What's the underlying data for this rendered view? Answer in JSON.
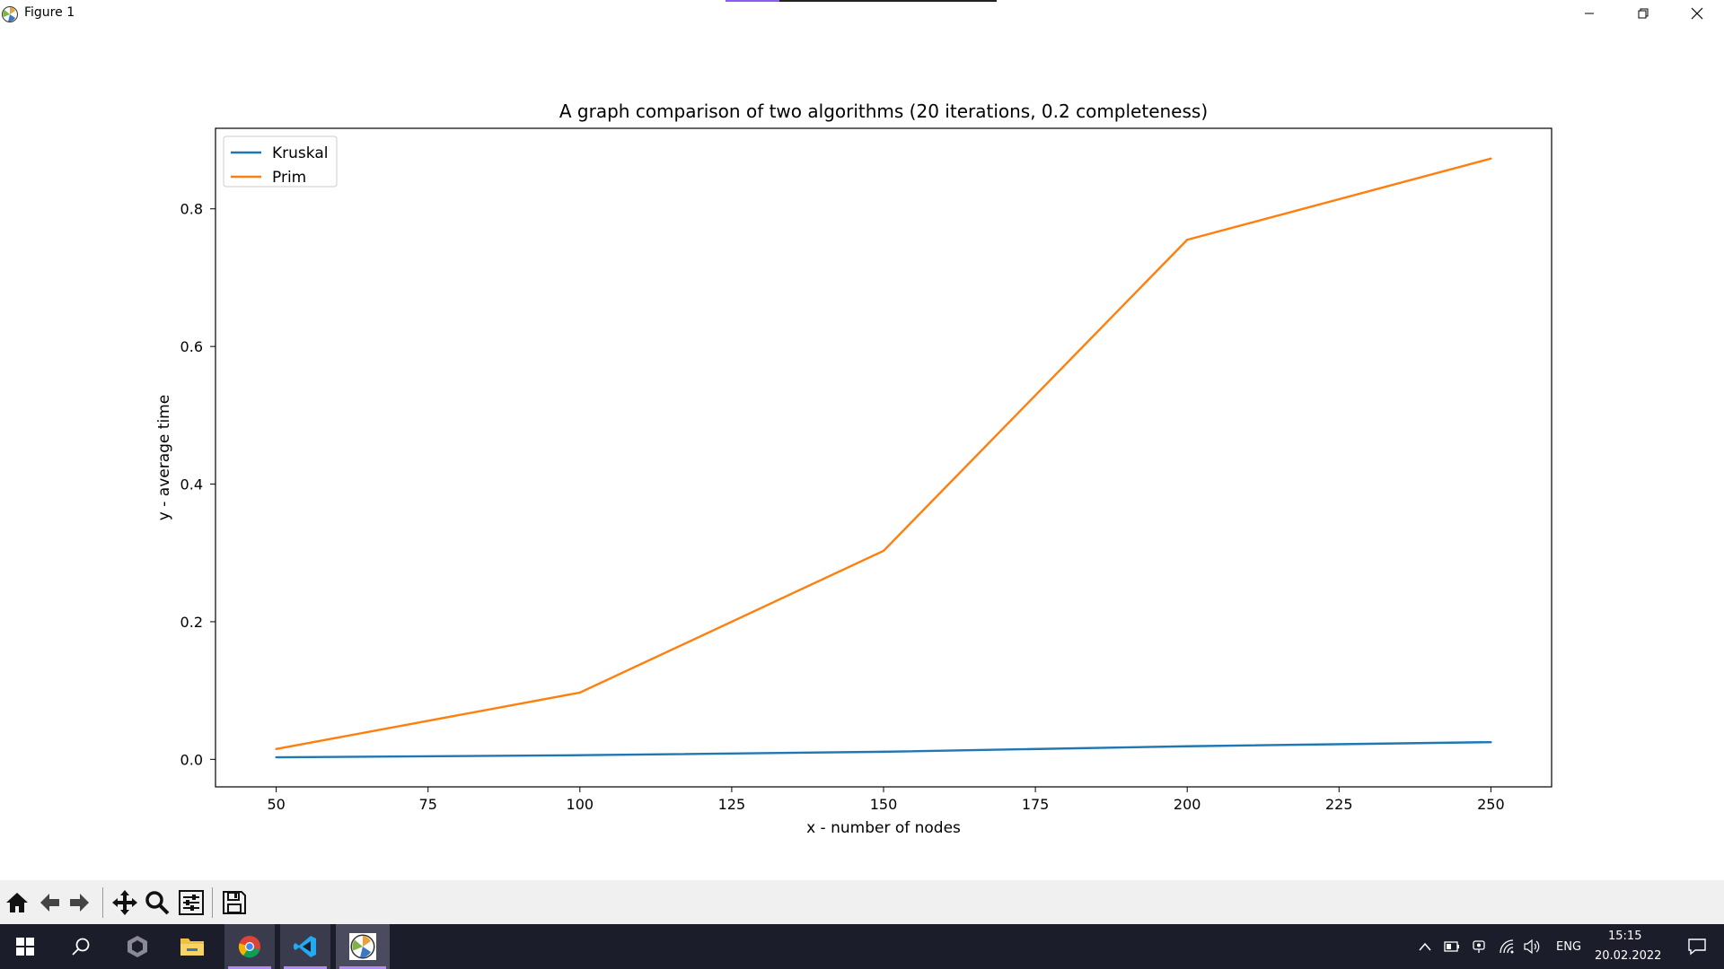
{
  "window": {
    "title": "Figure 1",
    "app_icon": "matplotlib-icon",
    "controls": [
      "minimize-icon",
      "restore-icon",
      "close-icon"
    ]
  },
  "chart_data": {
    "type": "line",
    "title": "A graph comparison of two algorithms (20 iterations, 0.2 completeness)",
    "xlabel": "x - number of nodes",
    "ylabel": "y - average time",
    "x": [
      50,
      100,
      150,
      200,
      250
    ],
    "series": [
      {
        "name": "Kruskal",
        "color": "#1f77b4",
        "values": [
          0.003,
          0.006,
          0.011,
          0.019,
          0.025
        ]
      },
      {
        "name": "Prim",
        "color": "#ff7f0e",
        "values": [
          0.015,
          0.097,
          0.303,
          0.755,
          0.873
        ]
      }
    ],
    "xlim": [
      40,
      260
    ],
    "ylim": [
      -0.04,
      0.917
    ],
    "xticks": [
      50,
      75,
      100,
      125,
      150,
      175,
      200,
      225,
      250
    ],
    "yticks": [
      0.0,
      0.2,
      0.4,
      0.6,
      0.8
    ],
    "ytick_labels": [
      "0.0",
      "0.2",
      "0.4",
      "0.6",
      "0.8"
    ],
    "legend_position": "top-left",
    "grid": false
  },
  "toolbar": {
    "buttons": [
      {
        "name": "home-icon",
        "tooltip": "Reset original view"
      },
      {
        "name": "back-arrow-icon",
        "tooltip": "Back"
      },
      {
        "name": "forward-arrow-icon",
        "tooltip": "Forward"
      },
      {
        "name": "pan-icon",
        "tooltip": "Pan"
      },
      {
        "name": "zoom-icon",
        "tooltip": "Zoom"
      },
      {
        "name": "configure-subplots-icon",
        "tooltip": "Configure subplots"
      },
      {
        "name": "save-icon",
        "tooltip": "Save"
      }
    ]
  },
  "taskbar": {
    "apps": [
      "windows-start-icon",
      "search-icon",
      "unity-icon",
      "file-explorer-icon",
      "chrome-icon",
      "vscode-icon",
      "matplotlib-icon"
    ],
    "language": "ENG",
    "time": "15:15",
    "date": "20.02.2022"
  }
}
